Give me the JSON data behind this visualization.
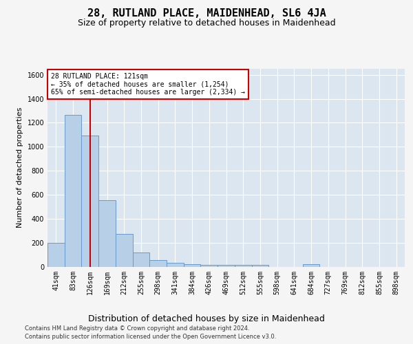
{
  "title": "28, RUTLAND PLACE, MAIDENHEAD, SL6 4JA",
  "subtitle": "Size of property relative to detached houses in Maidenhead",
  "xlabel": "Distribution of detached houses by size in Maidenhead",
  "ylabel": "Number of detached properties",
  "footer_line1": "Contains HM Land Registry data © Crown copyright and database right 2024.",
  "footer_line2": "Contains public sector information licensed under the Open Government Licence v3.0.",
  "categories": [
    "41sqm",
    "83sqm",
    "126sqm",
    "169sqm",
    "212sqm",
    "255sqm",
    "298sqm",
    "341sqm",
    "384sqm",
    "426sqm",
    "469sqm",
    "512sqm",
    "555sqm",
    "598sqm",
    "641sqm",
    "684sqm",
    "727sqm",
    "769sqm",
    "812sqm",
    "855sqm",
    "898sqm"
  ],
  "values": [
    200,
    1265,
    1095,
    555,
    270,
    120,
    55,
    33,
    22,
    12,
    12,
    12,
    12,
    0,
    0,
    20,
    0,
    0,
    0,
    0,
    0
  ],
  "bar_color": "#b8cfe8",
  "bar_edge_color": "#6699cc",
  "vline_x": 2.0,
  "vline_color": "#cc0000",
  "annotation_line1": "28 RUTLAND PLACE: 121sqm",
  "annotation_line2": "← 35% of detached houses are smaller (1,254)",
  "annotation_line3": "65% of semi-detached houses are larger (2,334) →",
  "annotation_box_edgecolor": "#cc0000",
  "ylim": [
    0,
    1650
  ],
  "yticks": [
    0,
    200,
    400,
    600,
    800,
    1000,
    1200,
    1400,
    1600
  ],
  "fig_background": "#f5f5f5",
  "plot_bg_color": "#dce6f0",
  "grid_color": "#ffffff",
  "title_fontsize": 11,
  "subtitle_fontsize": 9,
  "xlabel_fontsize": 9,
  "ylabel_fontsize": 8,
  "tick_fontsize": 7,
  "annotation_fontsize": 7,
  "footer_fontsize": 6
}
